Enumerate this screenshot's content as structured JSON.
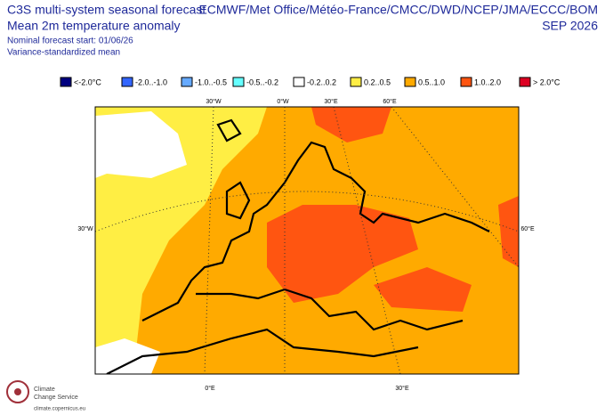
{
  "header": {
    "title_lines": [
      "C3S multi-system seasonal forecast",
      "Mean 2m temperature anomaly"
    ],
    "subtitle_lines": [
      "Nominal forecast start: 01/06/26",
      "Variance-standardized mean"
    ],
    "providers": "ECMWF/Met Office/Météo-France/CMCC/DWD/NCEP/JMA/ECCC/BOM",
    "valid": "SEP 2026"
  },
  "legend": [
    {
      "label": "<-2.0°C",
      "color": "#00007f"
    },
    {
      "label": "-2.0..-1.0",
      "color": "#3366ff"
    },
    {
      "label": "-1.0..-0.5",
      "color": "#66aaff"
    },
    {
      "label": "-0.5..-0.2",
      "color": "#66ffff"
    },
    {
      "label": "-0.2..0.2",
      "color": "#ffffff"
    },
    {
      "label": "0.2..0.5",
      "color": "#ffee44"
    },
    {
      "label": "0.5..1.0",
      "color": "#ffaa00"
    },
    {
      "label": "1.0..2.0",
      "color": "#ff5511"
    },
    {
      "label": "> 2.0°C",
      "color": "#dd0022"
    }
  ],
  "map": {
    "top_labels": [
      "30°W",
      "0°W",
      "30°E",
      "60°E"
    ],
    "left_labels": [
      "30°W"
    ],
    "right_labels": [
      "60°E"
    ],
    "bottom_labels": [
      "0°E",
      "30°E"
    ]
  },
  "logo": {
    "name_lines": [
      "Climate",
      "Change Service"
    ],
    "url": "climate.copernicus.eu"
  }
}
